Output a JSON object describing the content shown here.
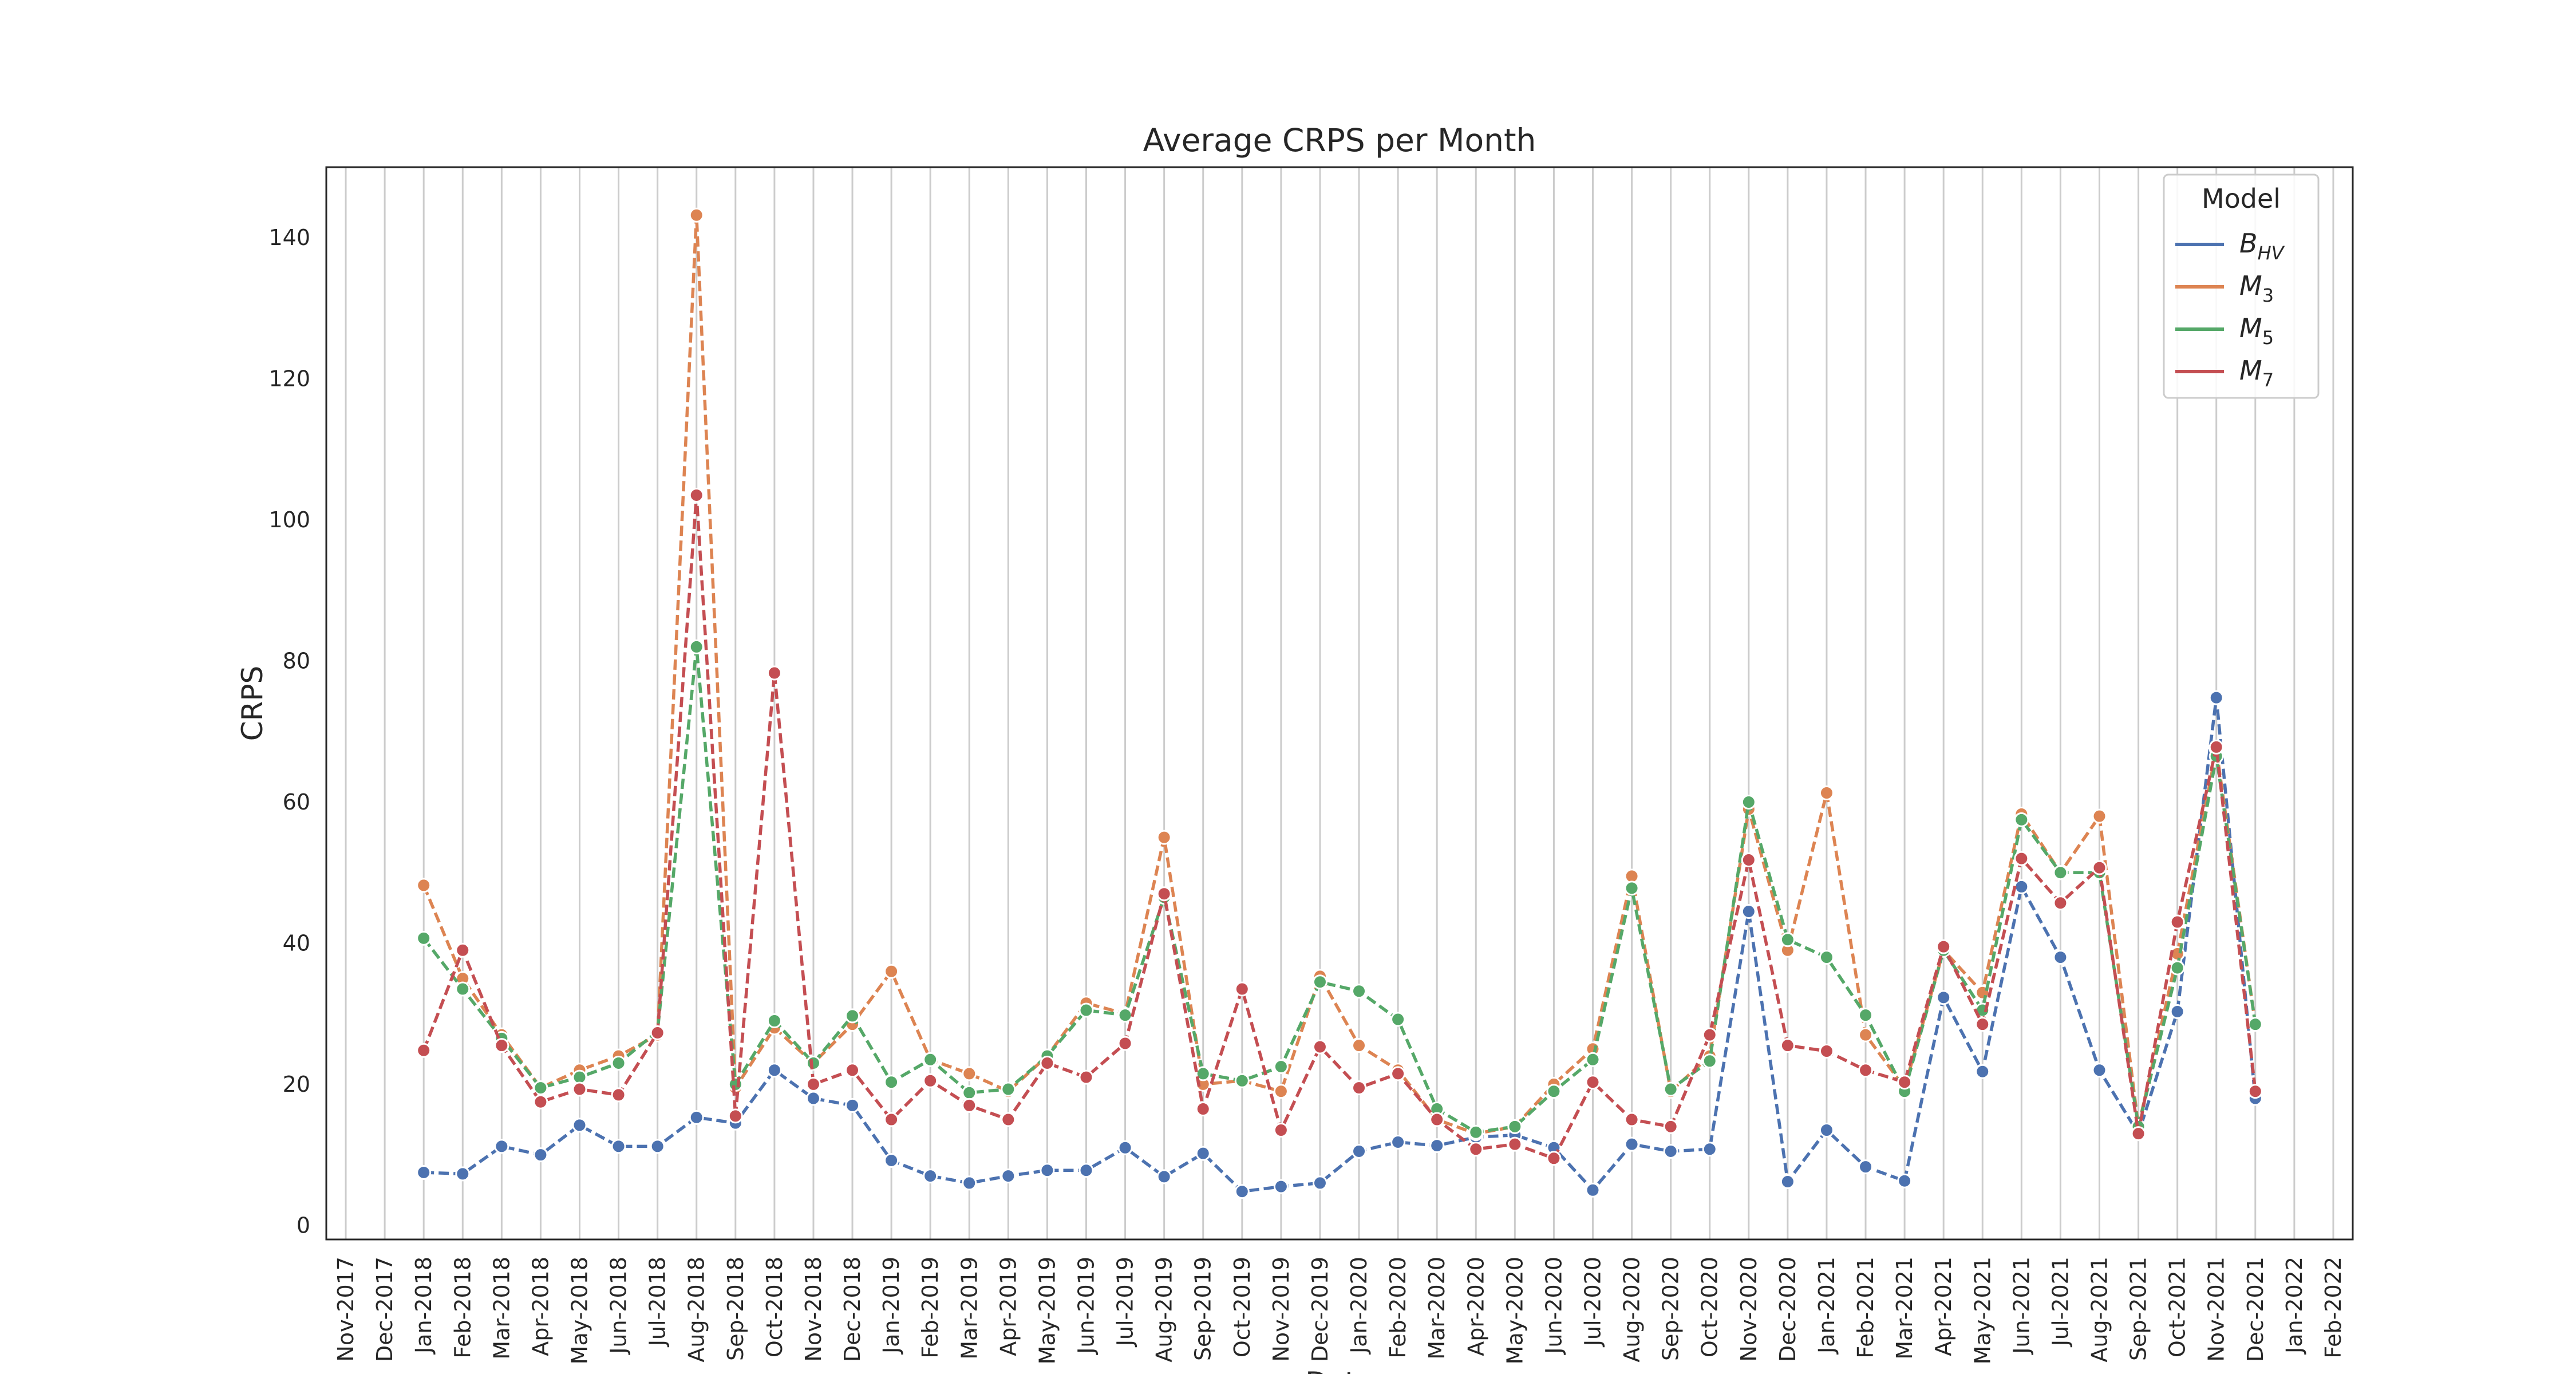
{
  "chart_data": {
    "type": "line",
    "title": "Average CRPS per Month",
    "xlabel": "Date",
    "ylabel": "CRPS",
    "ylim": [
      -2,
      150
    ],
    "yticks": [
      0,
      20,
      40,
      60,
      80,
      100,
      120,
      140
    ],
    "grid": "vertical",
    "legend": {
      "title": "Model",
      "placement": "top-right"
    },
    "x_ticks": [
      "Nov-2017",
      "Dec-2017",
      "Jan-2018",
      "Feb-2018",
      "Mar-2018",
      "Apr-2018",
      "May-2018",
      "Jun-2018",
      "Jul-2018",
      "Aug-2018",
      "Sep-2018",
      "Oct-2018",
      "Nov-2018",
      "Dec-2018",
      "Jan-2019",
      "Feb-2019",
      "Mar-2019",
      "Apr-2019",
      "May-2019",
      "Jun-2019",
      "Jul-2019",
      "Aug-2019",
      "Sep-2019",
      "Oct-2019",
      "Nov-2019",
      "Dec-2019",
      "Jan-2020",
      "Feb-2020",
      "Mar-2020",
      "Apr-2020",
      "May-2020",
      "Jun-2020",
      "Jul-2020",
      "Aug-2020",
      "Sep-2020",
      "Oct-2020",
      "Nov-2020",
      "Dec-2020",
      "Jan-2021",
      "Feb-2021",
      "Mar-2021",
      "Apr-2021",
      "May-2021",
      "Jun-2021",
      "Jul-2021",
      "Aug-2021",
      "Sep-2021",
      "Oct-2021",
      "Nov-2021",
      "Dec-2021",
      "Jan-2022",
      "Feb-2022"
    ],
    "x": [
      "Jan-2018",
      "Feb-2018",
      "Mar-2018",
      "Apr-2018",
      "May-2018",
      "Jun-2018",
      "Jul-2018",
      "Aug-2018",
      "Sep-2018",
      "Oct-2018",
      "Nov-2018",
      "Dec-2018",
      "Jan-2019",
      "Feb-2019",
      "Mar-2019",
      "Apr-2019",
      "May-2019",
      "Jun-2019",
      "Jul-2019",
      "Aug-2019",
      "Sep-2019",
      "Oct-2019",
      "Nov-2019",
      "Dec-2019",
      "Jan-2020",
      "Feb-2020",
      "Mar-2020",
      "Apr-2020",
      "May-2020",
      "Jun-2020",
      "Jul-2020",
      "Aug-2020",
      "Sep-2020",
      "Oct-2020",
      "Nov-2020",
      "Dec-2020",
      "Jan-2021",
      "Feb-2021",
      "Mar-2021",
      "Apr-2021",
      "May-2021",
      "Jun-2021",
      "Jul-2021",
      "Aug-2021",
      "Sep-2021",
      "Oct-2021",
      "Nov-2021",
      "Dec-2021"
    ],
    "series": [
      {
        "name": "B",
        "subscript": "HV",
        "color": "#4c72b0",
        "values": [
          7.5,
          7.3,
          11.2,
          10.0,
          14.2,
          11.2,
          11.2,
          15.3,
          14.5,
          22.0,
          18.0,
          17.0,
          9.2,
          7.0,
          6.0,
          7.0,
          7.8,
          7.8,
          11.0,
          6.9,
          10.2,
          4.8,
          5.5,
          6.0,
          10.5,
          11.8,
          11.3,
          12.5,
          12.8,
          11.0,
          5.0,
          11.5,
          10.5,
          10.8,
          44.5,
          6.2,
          13.5,
          8.3,
          6.3,
          32.3,
          21.8,
          48.0,
          38.0,
          22.0,
          13.0,
          30.3,
          74.8,
          18.0
        ]
      },
      {
        "name": "M",
        "subscript": "3",
        "color": "#dd8452",
        "values": [
          48.2,
          35.0,
          27.0,
          19.5,
          22.0,
          24.0,
          27.0,
          143.2,
          19.5,
          28.0,
          23.0,
          28.5,
          36.0,
          23.5,
          21.5,
          19.0,
          24.0,
          31.5,
          30.0,
          55.0,
          20.0,
          20.5,
          19.0,
          35.3,
          25.5,
          22.0,
          15.0,
          13.0,
          14.0,
          20.0,
          25.0,
          49.5,
          19.0,
          24.0,
          59.0,
          39.0,
          61.3,
          27.0,
          19.5,
          39.0,
          33.0,
          58.3,
          50.0,
          58.0,
          14.0,
          38.5,
          67.5,
          28.5
        ]
      },
      {
        "name": "M",
        "subscript": "5",
        "color": "#55a868",
        "values": [
          40.7,
          33.5,
          26.5,
          19.5,
          21.0,
          23.0,
          27.5,
          82.0,
          20.0,
          29.0,
          23.0,
          29.7,
          20.3,
          23.5,
          18.8,
          19.3,
          24.0,
          30.5,
          29.8,
          46.5,
          21.5,
          20.5,
          22.5,
          34.5,
          33.2,
          29.2,
          16.5,
          13.2,
          14.0,
          19.0,
          23.5,
          47.8,
          19.3,
          23.3,
          60.0,
          40.5,
          38.0,
          29.8,
          19.0,
          39.0,
          30.5,
          57.5,
          50.0,
          50.0,
          14.0,
          36.5,
          66.5,
          28.5
        ]
      },
      {
        "name": "M",
        "subscript": "7",
        "color": "#c44e52",
        "values": [
          24.8,
          39.0,
          25.5,
          17.5,
          19.3,
          18.5,
          27.3,
          103.5,
          15.5,
          78.3,
          20.0,
          22.0,
          15.0,
          20.5,
          17.0,
          15.0,
          23.0,
          21.0,
          25.8,
          47.0,
          16.5,
          33.5,
          13.5,
          25.3,
          19.5,
          21.5,
          15.0,
          10.8,
          11.5,
          9.5,
          20.3,
          15.0,
          14.0,
          27.0,
          51.8,
          25.5,
          24.7,
          22.0,
          20.3,
          39.5,
          28.5,
          52.0,
          45.7,
          50.7,
          13.0,
          43.0,
          67.8,
          19.0
        ]
      }
    ]
  }
}
